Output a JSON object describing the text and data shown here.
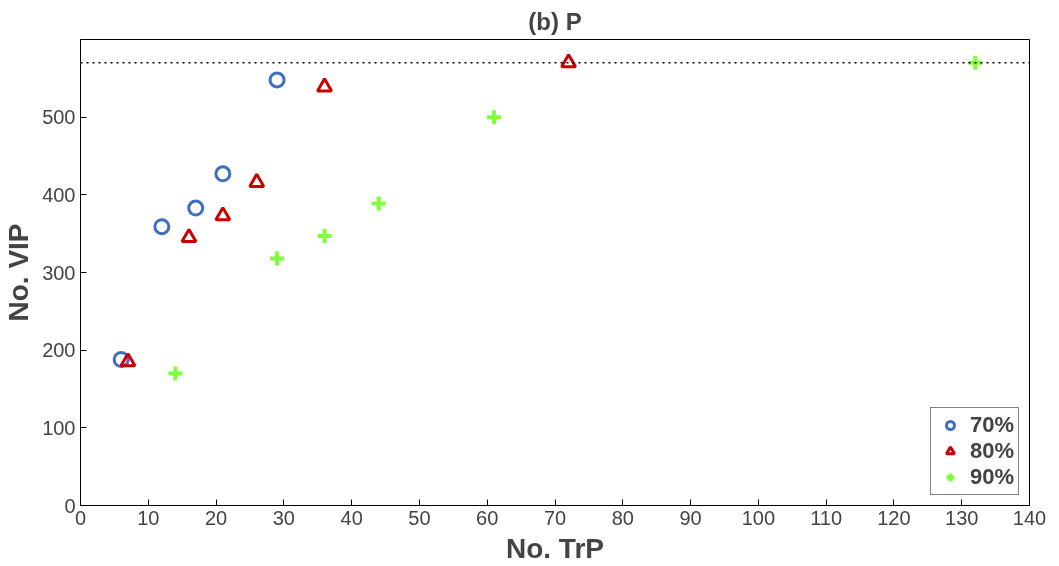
{
  "chart_data": {
    "type": "scatter",
    "title": "(b) P",
    "xlabel": "No. TrP",
    "ylabel": "No. VIP",
    "xlim": [
      0,
      140
    ],
    "xticks": [
      0,
      10,
      20,
      30,
      40,
      50,
      60,
      70,
      80,
      90,
      100,
      110,
      120,
      130,
      140
    ],
    "ylim": [
      0,
      600
    ],
    "yticks": [
      0,
      100,
      200,
      300,
      400,
      500
    ],
    "legend": "bottom right",
    "grid": false,
    "ref_lines": [
      {
        "axis": "y",
        "value": 570,
        "line_style": "dotted",
        "color": "#000000"
      }
    ],
    "series": [
      {
        "name": "70%",
        "color": "#3c6fc0",
        "marker": "circle",
        "x": [
          6,
          12,
          17,
          21,
          29
        ],
        "values": [
          188,
          359,
          383,
          427,
          548
        ]
      },
      {
        "name": "80%",
        "color": "#cc0000",
        "marker": "triangle",
        "x": [
          7,
          16,
          21,
          26,
          36,
          72
        ],
        "values": [
          185,
          345,
          373,
          416,
          539,
          570
        ]
      },
      {
        "name": "90%",
        "color": "#7fff3a",
        "marker": "cross",
        "x": [
          14,
          29,
          36,
          44,
          61,
          132
        ],
        "values": [
          170,
          318,
          347,
          389,
          500,
          570
        ]
      }
    ]
  }
}
